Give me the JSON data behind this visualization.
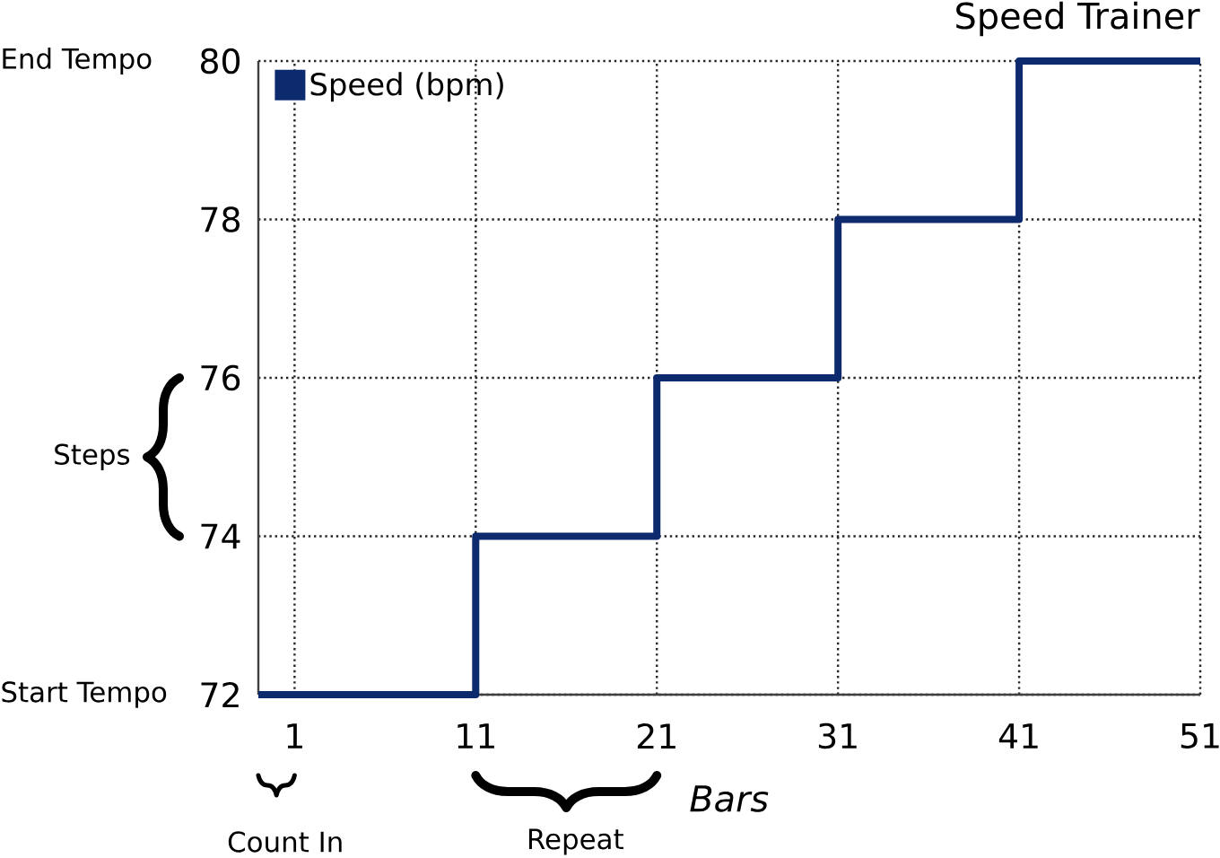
{
  "chart_data": {
    "type": "step",
    "title": "Speed Trainer",
    "xlabel": "Bars",
    "x": [
      -1,
      11,
      21,
      31,
      41,
      51
    ],
    "series": [
      {
        "name": "Speed (bpm)",
        "color": "#0e2a6e",
        "values": [
          72,
          74,
          76,
          78,
          80,
          80
        ]
      }
    ],
    "xlim": [
      -1,
      51
    ],
    "ylim": [
      72,
      80
    ],
    "xticks": [
      1,
      11,
      21,
      31,
      41,
      51
    ],
    "yticks": [
      72,
      74,
      76,
      78,
      80
    ],
    "grid": true,
    "legend": "top left",
    "annotations": [
      "End Tempo",
      "Steps",
      "Start Tempo",
      "Count In",
      "Repeat"
    ]
  }
}
